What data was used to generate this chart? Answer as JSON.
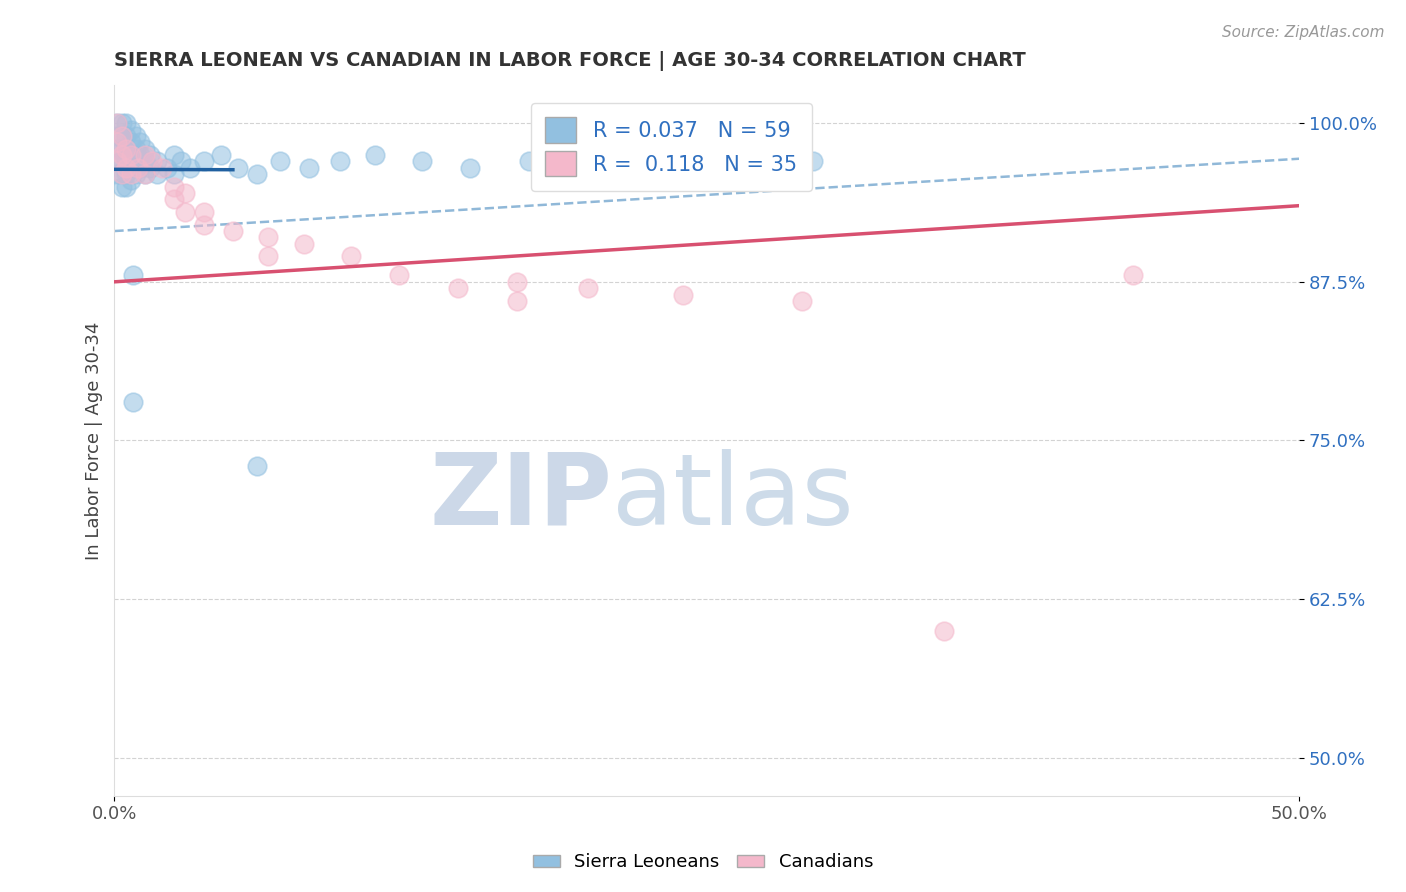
{
  "title": "SIERRA LEONEAN VS CANADIAN IN LABOR FORCE | AGE 30-34 CORRELATION CHART",
  "source": "Source: ZipAtlas.com",
  "ylabel": "In Labor Force | Age 30-34",
  "xlim": [
    0.0,
    0.5
  ],
  "ylim": [
    0.47,
    1.03
  ],
  "yticks": [
    0.5,
    0.625,
    0.75,
    0.875,
    1.0
  ],
  "ytick_labels": [
    "50.0%",
    "62.5%",
    "75.0%",
    "87.5%",
    "100.0%"
  ],
  "xticks": [
    0.0,
    0.5
  ],
  "xtick_labels": [
    "0.0%",
    "50.0%"
  ],
  "legend_labels": [
    "Sierra Leoneans",
    "Canadians"
  ],
  "r_blue": 0.037,
  "n_blue": 59,
  "r_pink": 0.118,
  "n_pink": 35,
  "blue_color": "#92c0e0",
  "pink_color": "#f4b8cb",
  "blue_line_color": "#2060a0",
  "pink_line_color": "#d85070",
  "dashed_line_color": "#90b8d8",
  "background_color": "#ffffff",
  "grid_color": "#c8c8c8",
  "title_color": "#333333",
  "watermark_color": "#ccd8e8",
  "blue_scatter_x": [
    0.001,
    0.001,
    0.001,
    0.001,
    0.001,
    0.003,
    0.003,
    0.003,
    0.003,
    0.003,
    0.003,
    0.005,
    0.005,
    0.005,
    0.005,
    0.005,
    0.005,
    0.007,
    0.007,
    0.007,
    0.007,
    0.007,
    0.009,
    0.009,
    0.009,
    0.009,
    0.011,
    0.011,
    0.011,
    0.013,
    0.013,
    0.013,
    0.015,
    0.015,
    0.018,
    0.018,
    0.022,
    0.025,
    0.025,
    0.028,
    0.032,
    0.038,
    0.045,
    0.052,
    0.06,
    0.07,
    0.082,
    0.095,
    0.11,
    0.13,
    0.15,
    0.175,
    0.2,
    0.23,
    0.26,
    0.295,
    0.008,
    0.008,
    0.06
  ],
  "blue_scatter_y": [
    1.0,
    0.99,
    0.98,
    0.97,
    0.96,
    1.0,
    0.99,
    0.98,
    0.97,
    0.96,
    0.95,
    1.0,
    0.99,
    0.98,
    0.97,
    0.96,
    0.95,
    0.995,
    0.985,
    0.975,
    0.965,
    0.955,
    0.99,
    0.98,
    0.97,
    0.96,
    0.985,
    0.975,
    0.965,
    0.98,
    0.97,
    0.96,
    0.975,
    0.965,
    0.97,
    0.96,
    0.965,
    0.975,
    0.96,
    0.97,
    0.965,
    0.97,
    0.975,
    0.965,
    0.96,
    0.97,
    0.965,
    0.97,
    0.975,
    0.97,
    0.965,
    0.97,
    0.975,
    0.97,
    0.965,
    0.97,
    0.88,
    0.78,
    0.73
  ],
  "pink_scatter_x": [
    0.001,
    0.001,
    0.001,
    0.003,
    0.003,
    0.003,
    0.005,
    0.005,
    0.007,
    0.007,
    0.01,
    0.013,
    0.013,
    0.016,
    0.02,
    0.025,
    0.025,
    0.03,
    0.03,
    0.038,
    0.038,
    0.05,
    0.065,
    0.065,
    0.08,
    0.1,
    0.12,
    0.145,
    0.17,
    0.17,
    0.2,
    0.24,
    0.29,
    0.35,
    0.43
  ],
  "pink_scatter_y": [
    1.0,
    0.985,
    0.97,
    0.99,
    0.975,
    0.96,
    0.98,
    0.965,
    0.975,
    0.96,
    0.965,
    0.975,
    0.96,
    0.97,
    0.965,
    0.95,
    0.94,
    0.945,
    0.93,
    0.93,
    0.92,
    0.915,
    0.91,
    0.895,
    0.905,
    0.895,
    0.88,
    0.87,
    0.875,
    0.86,
    0.87,
    0.865,
    0.86,
    0.6,
    0.88
  ]
}
